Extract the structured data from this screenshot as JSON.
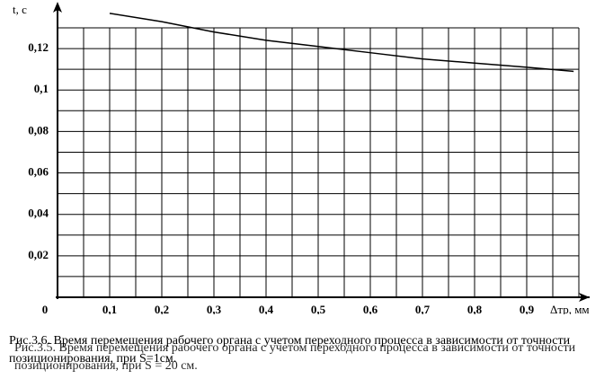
{
  "chart_data": {
    "type": "line",
    "y_label": "t, c",
    "x_label": "Δтр, мм",
    "x": [
      0.1,
      0.2,
      0.3,
      0.4,
      0.5,
      0.6,
      0.7,
      0.8,
      0.9,
      0.99
    ],
    "series": [
      {
        "name": "t",
        "color": "#000000",
        "values": [
          0.137,
          0.133,
          0.128,
          0.124,
          0.121,
          0.118,
          0.115,
          0.113,
          0.111,
          0.109
        ]
      }
    ],
    "xlim": [
      0,
      1.0
    ],
    "ylim": [
      0,
      0.13
    ],
    "xticks": [
      0,
      {
        "value": 0.1,
        "label": "0,1"
      },
      {
        "value": 0.2,
        "label": "0,2"
      },
      {
        "value": 0.3,
        "label": "0,3"
      },
      {
        "value": 0.4,
        "label": "0,4"
      },
      {
        "value": 0.5,
        "label": "0,5"
      },
      {
        "value": 0.6,
        "label": "0,6"
      },
      {
        "value": 0.7,
        "label": "0,7"
      },
      {
        "value": 0.8,
        "label": "0,8"
      },
      {
        "value": 0.9,
        "label": "0,9"
      }
    ],
    "yticks": [
      {
        "value": 0.02,
        "label": "0,02"
      },
      {
        "value": 0.04,
        "label": "0,04"
      },
      {
        "value": 0.06,
        "label": "0,06"
      },
      {
        "value": 0.08,
        "label": "0,08"
      },
      {
        "value": 0.1,
        "label": "0,1"
      },
      {
        "value": 0.12,
        "label": "0,12"
      }
    ],
    "xgrid": [
      0.05,
      0.1,
      0.15,
      0.2,
      0.25,
      0.3,
      0.35,
      0.4,
      0.45,
      0.5,
      0.55,
      0.6,
      0.65,
      0.7,
      0.75,
      0.8,
      0.85,
      0.9,
      0.95,
      1.0
    ],
    "ygrid": [
      0.01,
      0.02,
      0.03,
      0.04,
      0.05,
      0.06,
      0.07,
      0.08,
      0.09,
      0.1,
      0.11,
      0.12,
      0.13
    ],
    "grid": true,
    "captions": [
      "Рис.3.6. Время перемещения рабочего органа с учетом переходного процесса в зависимости от точности позиционирования, при S=1см.",
      "Рис.3.5. Время перемещения рабочего органа с учетом переходного процесса в зависимости от точности позиционирования, при S = 20 см."
    ]
  }
}
